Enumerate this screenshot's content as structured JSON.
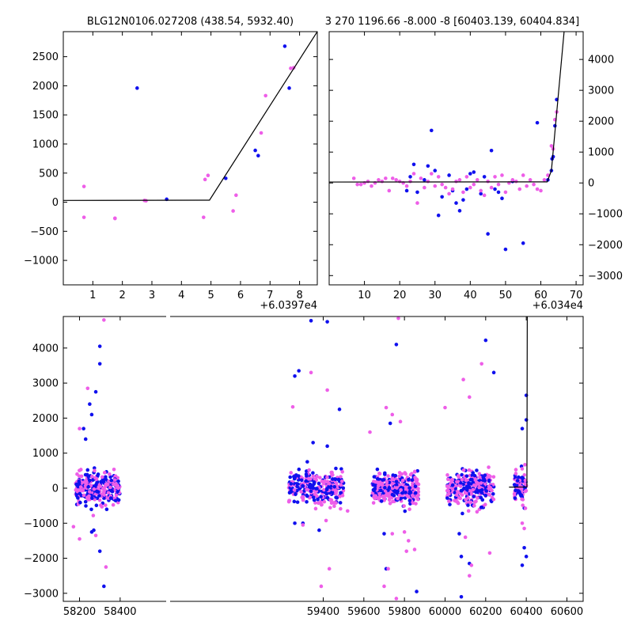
{
  "colors": {
    "blue": "#1010ee",
    "magenta": "#ee5ee8",
    "axes": "#000000",
    "model": "#000000"
  },
  "chart_data": [
    {
      "type": "scatter",
      "title": "BLG12N0106.027208 (438.54, 5932.40)",
      "xlim": [
        0,
        8.6
      ],
      "ylim": [
        -1420,
        2930
      ],
      "xticks": [
        1,
        2,
        3,
        4,
        5,
        6,
        7,
        8
      ],
      "xtick_labels": [
        "1",
        "2",
        "3",
        "4",
        "5",
        "6",
        "7",
        "8"
      ],
      "yticks": [
        -1000,
        -500,
        0,
        500,
        1000,
        1500,
        2000,
        2500
      ],
      "ytick_labels": [
        "−1000",
        "−500",
        "0",
        "500",
        "1000",
        "1500",
        "2000",
        "2500"
      ],
      "x_offset_label": "+6.0397e4",
      "yaxis_side": "left",
      "series": [
        {
          "color": "blue",
          "points": [
            [
              2.5,
              1960
            ],
            [
              3.5,
              50
            ],
            [
              5.5,
              410
            ],
            [
              6.5,
              890
            ],
            [
              6.6,
              800
            ],
            [
              7.5,
              2680
            ],
            [
              7.65,
              1960
            ]
          ]
        },
        {
          "color": "magenta",
          "points": [
            [
              0.7,
              270
            ],
            [
              0.7,
              -260
            ],
            [
              1.75,
              -280
            ],
            [
              1.75,
              -275
            ],
            [
              2.75,
              30
            ],
            [
              2.8,
              25
            ],
            [
              4.75,
              -260
            ],
            [
              4.8,
              390
            ],
            [
              4.9,
              460
            ],
            [
              5.75,
              -150
            ],
            [
              5.85,
              120
            ],
            [
              6.7,
              1190
            ],
            [
              6.85,
              1830
            ],
            [
              7.7,
              2300
            ],
            [
              7.8,
              2310
            ]
          ]
        }
      ],
      "model": [
        [
          0,
          30
        ],
        [
          4.95,
          35
        ],
        [
          8.6,
          2930
        ]
      ]
    },
    {
      "type": "scatter",
      "title": "3 270 1196.66 -8.000 -8 [60403.139, 60404.834]",
      "xlim": [
        0,
        72
      ],
      "ylim": [
        -3300,
        4900
      ],
      "xticks": [
        10,
        20,
        30,
        40,
        50,
        60,
        70
      ],
      "xtick_labels": [
        "10",
        "20",
        "30",
        "40",
        "50",
        "60",
        "70"
      ],
      "yticks": [
        -3000,
        -2000,
        -1000,
        0,
        1000,
        2000,
        3000,
        4000
      ],
      "ytick_labels": [
        "−3000",
        "−2000",
        "−1000",
        "0",
        "1000",
        "2000",
        "3000",
        "4000"
      ],
      "x_offset_label": "+6.034e4",
      "yaxis_side": "right",
      "series": [
        {
          "color": "blue",
          "points": [
            [
              22,
              -250
            ],
            [
              23,
              200
            ],
            [
              24,
              600
            ],
            [
              25,
              -300
            ],
            [
              27,
              100
            ],
            [
              28,
              550
            ],
            [
              29,
              1700
            ],
            [
              30,
              400
            ],
            [
              31,
              -1050
            ],
            [
              32,
              -450
            ],
            [
              34,
              250
            ],
            [
              35,
              -250
            ],
            [
              36,
              -650
            ],
            [
              37,
              -900
            ],
            [
              38,
              -550
            ],
            [
              39,
              -200
            ],
            [
              40,
              300
            ],
            [
              41,
              350
            ],
            [
              43,
              -350
            ],
            [
              44,
              200
            ],
            [
              45,
              -1650
            ],
            [
              46,
              1050
            ],
            [
              47,
              -200
            ],
            [
              48,
              -300
            ],
            [
              49,
              -500
            ],
            [
              50,
              -2150
            ],
            [
              52,
              50
            ],
            [
              55,
              -1950
            ],
            [
              59,
              1950
            ],
            [
              62,
              100
            ],
            [
              63,
              400
            ],
            [
              63.5,
              850
            ],
            [
              64,
              1850
            ],
            [
              64.5,
              2700
            ],
            [
              63.2,
              780
            ]
          ]
        },
        {
          "color": "magenta",
          "points": [
            [
              7,
              150
            ],
            [
              8,
              -50
            ],
            [
              9,
              -50
            ],
            [
              10,
              0
            ],
            [
              11,
              50
            ],
            [
              12,
              -100
            ],
            [
              13,
              0
            ],
            [
              14,
              100
            ],
            [
              15,
              50
            ],
            [
              16,
              150
            ],
            [
              17,
              -250
            ],
            [
              18,
              150
            ],
            [
              19,
              100
            ],
            [
              20,
              50
            ],
            [
              21,
              0
            ],
            [
              22,
              -100
            ],
            [
              23,
              50
            ],
            [
              24,
              300
            ],
            [
              25,
              -650
            ],
            [
              26,
              150
            ],
            [
              27,
              -150
            ],
            [
              28,
              50
            ],
            [
              29,
              300
            ],
            [
              30,
              -100
            ],
            [
              31,
              200
            ],
            [
              32,
              -50
            ],
            [
              33,
              -150
            ],
            [
              34,
              -350
            ],
            [
              35,
              -200
            ],
            [
              36,
              50
            ],
            [
              37,
              100
            ],
            [
              38,
              -300
            ],
            [
              39,
              200
            ],
            [
              40,
              -150
            ],
            [
              41,
              -50
            ],
            [
              42,
              100
            ],
            [
              43,
              -250
            ],
            [
              44,
              -400
            ],
            [
              45,
              50
            ],
            [
              46,
              -150
            ],
            [
              47,
              200
            ],
            [
              48,
              -50
            ],
            [
              49,
              250
            ],
            [
              50,
              -300
            ],
            [
              51,
              0
            ],
            [
              52,
              100
            ],
            [
              53,
              50
            ],
            [
              54,
              -200
            ],
            [
              55,
              250
            ],
            [
              56,
              -100
            ],
            [
              57,
              100
            ],
            [
              58,
              -50
            ],
            [
              59,
              -200
            ],
            [
              60,
              -250
            ],
            [
              61,
              100
            ],
            [
              62,
              250
            ],
            [
              63,
              1200
            ],
            [
              64,
              2050
            ],
            [
              64.5,
              2300
            ],
            [
              63.5,
              1100
            ]
          ]
        }
      ],
      "model": [
        [
          0,
          30
        ],
        [
          61.8,
          35
        ],
        [
          63,
          400
        ],
        [
          66.6,
          4900
        ]
      ]
    },
    {
      "type": "scatter",
      "title": "",
      "xlim": [
        58120,
        60680
      ],
      "ylim": [
        -3230,
        4900
      ],
      "xticks": [
        58200,
        58400,
        59400,
        59600,
        59800,
        60000,
        60200,
        60400,
        60600
      ],
      "xtick_labels": [
        "58200",
        "58400",
        "59400",
        "59600",
        "59800",
        "60000",
        "60200",
        "60400",
        "60600"
      ],
      "yticks": [
        -3000,
        -2000,
        -1000,
        0,
        1000,
        2000,
        3000,
        4000
      ],
      "ytick_labels": [
        "−3000",
        "−2000",
        "−1000",
        "0",
        "1000",
        "2000",
        "3000",
        "4000"
      ],
      "x_offset_label": "",
      "yaxis_side": "left",
      "break_between": [
        58450,
        59280
      ],
      "seasons": [
        [
          58180,
          58400,
          300
        ],
        [
          59230,
          59500,
          320
        ],
        [
          59640,
          59870,
          320
        ],
        [
          60010,
          60240,
          300
        ],
        [
          60340,
          60400,
          90
        ]
      ],
      "series_outliers": [
        {
          "color": "blue",
          "points": [
            [
              58300,
              4050
            ],
            [
              58300,
              3550
            ],
            [
              58280,
              2750
            ],
            [
              58260,
              2100
            ],
            [
              58250,
              2400
            ],
            [
              58220,
              1700
            ],
            [
              58230,
              1400
            ],
            [
              58320,
              -2800
            ],
            [
              58300,
              -1800
            ],
            [
              59260,
              3200
            ],
            [
              59280,
              3350
            ],
            [
              59340,
              4780
            ],
            [
              59420,
              4750
            ],
            [
              59480,
              2250
            ],
            [
              59760,
              4100
            ],
            [
              59710,
              -2300
            ],
            [
              59860,
              -2950
            ],
            [
              60080,
              -1950
            ],
            [
              60120,
              -2150
            ],
            [
              60200,
              4220
            ],
            [
              60240,
              3300
            ],
            [
              60080,
              -3100
            ],
            [
              60380,
              1700
            ],
            [
              60390,
              -1700
            ],
            [
              60380,
              -2200
            ],
            [
              60400,
              -1950
            ],
            [
              60400,
              2650
            ],
            [
              60400,
              1950
            ],
            [
              59260,
              -1000
            ],
            [
              59300,
              -1000
            ],
            [
              59380,
              -1200
            ],
            [
              59700,
              -1300
            ],
            [
              60070,
              -1300
            ],
            [
              58270,
              -1200
            ],
            [
              58260,
              -1250
            ],
            [
              59350,
              1300
            ],
            [
              59420,
              1200
            ],
            [
              59730,
              1850
            ]
          ]
        },
        {
          "color": "magenta",
          "points": [
            [
              58320,
              4800
            ],
            [
              58240,
              2850
            ],
            [
              58200,
              1700
            ],
            [
              58330,
              -2250
            ],
            [
              58170,
              -1100
            ],
            [
              58200,
              -1450
            ],
            [
              59250,
              2320
            ],
            [
              59340,
              3300
            ],
            [
              59420,
              2800
            ],
            [
              59430,
              -2300
            ],
            [
              59390,
              -2800
            ],
            [
              59520,
              -650
            ],
            [
              59630,
              1600
            ],
            [
              59710,
              2300
            ],
            [
              59740,
              2100
            ],
            [
              59770,
              4850
            ],
            [
              59780,
              1900
            ],
            [
              59810,
              -1800
            ],
            [
              59820,
              -1500
            ],
            [
              59850,
              -1750
            ],
            [
              59760,
              -3150
            ],
            [
              59700,
              -2800
            ],
            [
              59720,
              -2300
            ],
            [
              60000,
              2300
            ],
            [
              60090,
              3100
            ],
            [
              60120,
              2600
            ],
            [
              60180,
              3550
            ],
            [
              60220,
              -1850
            ],
            [
              60120,
              -2500
            ],
            [
              60130,
              -2200
            ],
            [
              60380,
              -1000
            ],
            [
              60390,
              -1150
            ],
            [
              59300,
              -1050
            ],
            [
              58280,
              -1350
            ],
            [
              59740,
              -1300
            ],
            [
              59800,
              -1250
            ],
            [
              60100,
              -1400
            ]
          ]
        }
      ],
      "model": [
        [
          60315,
          30
        ],
        [
          60403.1,
          35
        ],
        [
          60404.8,
          4900
        ]
      ]
    }
  ]
}
